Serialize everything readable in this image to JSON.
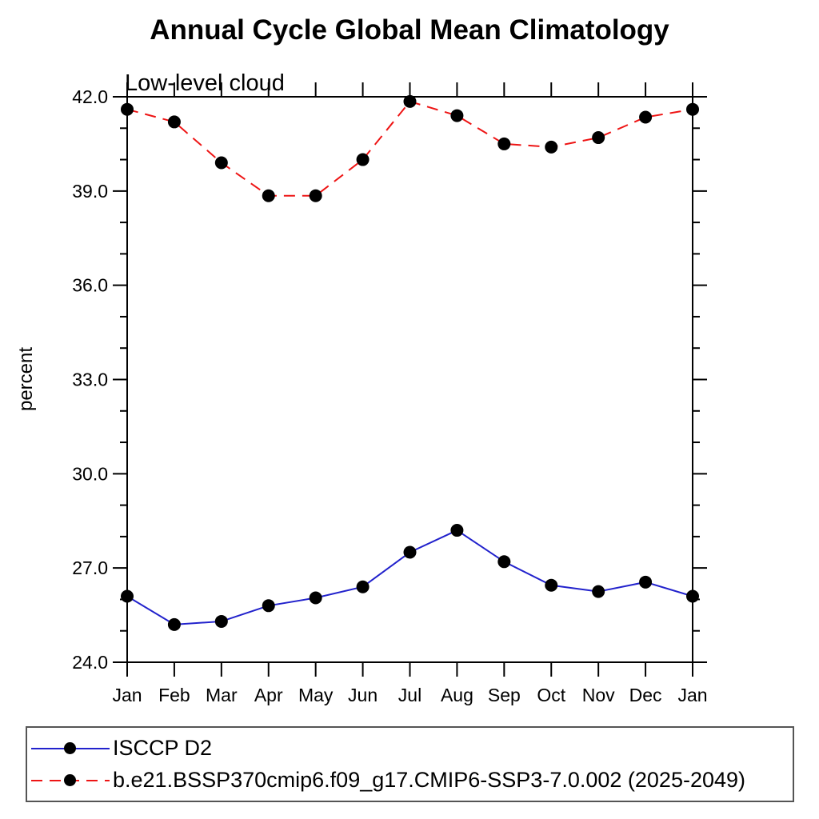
{
  "figure": {
    "background": "#ffffff",
    "text_color": "#000000"
  },
  "chart": {
    "title": "Annual Cycle Global Mean Climatology",
    "subtitle": "Low-level cloud",
    "ylabel": "percent"
  },
  "chart_data": {
    "type": "line",
    "title": "Annual Cycle Global Mean Climatology",
    "subtitle": "Low-level cloud",
    "xlabel": "",
    "ylabel": "percent",
    "categories": [
      "Jan",
      "Feb",
      "Mar",
      "Apr",
      "May",
      "Jun",
      "Jul",
      "Aug",
      "Sep",
      "Oct",
      "Nov",
      "Dec",
      "Jan"
    ],
    "ylim": [
      24.0,
      42.0
    ],
    "y_major_ticks": [
      24.0,
      27.0,
      30.0,
      33.0,
      36.0,
      39.0,
      42.0
    ],
    "y_tick_labels": [
      "24.0",
      "27.0",
      "30.0",
      "33.0",
      "36.0",
      "39.0",
      "42.0"
    ],
    "y_minor_tick_step": 1.0,
    "grid": "off",
    "tick_direction": "out",
    "marker": {
      "shape": "circle",
      "color": "#000000"
    },
    "frame_color": "#000000",
    "legend_position": "bottom-left-box",
    "series": [
      {
        "name": "ISCCP D2",
        "color": "#2222cc",
        "line_style": "solid",
        "values": [
          26.1,
          25.2,
          25.3,
          25.8,
          26.05,
          26.4,
          27.5,
          28.2,
          27.2,
          26.45,
          26.25,
          26.55,
          26.1
        ]
      },
      {
        "name": "b.e21.BSSP370cmip6.f09_g17.CMIP6-SSP3-7.0.002 (2025-2049)",
        "color": "#ee1515",
        "line_style": "dashed",
        "values": [
          41.6,
          41.2,
          39.9,
          38.85,
          38.85,
          40.0,
          41.85,
          41.4,
          40.5,
          40.4,
          40.7,
          41.35,
          41.6
        ]
      }
    ]
  }
}
